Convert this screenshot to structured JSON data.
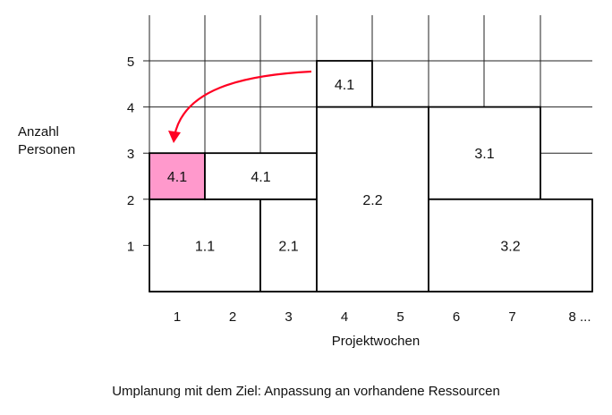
{
  "y_axis": {
    "label_line1": "Anzahl",
    "label_line2": "Personen",
    "ticks": [
      "1",
      "2",
      "3",
      "4",
      "5"
    ]
  },
  "x_axis": {
    "label": "Projektwochen",
    "ticks": [
      "1",
      "2",
      "3",
      "4",
      "5",
      "6",
      "7",
      "8 ..."
    ]
  },
  "blocks": [
    {
      "label": "1.1",
      "week_start": 1,
      "week_end": 2,
      "persons_from": 0,
      "persons_to": 2,
      "color": "#ffffff"
    },
    {
      "label": "2.1",
      "week_start": 3,
      "week_end": 3,
      "persons_from": 0,
      "persons_to": 2,
      "color": "#ffffff"
    },
    {
      "label": "4.1",
      "week_start": 1,
      "week_end": 1,
      "persons_from": 2,
      "persons_to": 3,
      "color": "#ff99cc"
    },
    {
      "label": "4.1",
      "week_start": 2,
      "week_end": 3,
      "persons_from": 2,
      "persons_to": 3,
      "color": "#ffffff"
    },
    {
      "label": "2.2",
      "week_start": 4,
      "week_end": 5,
      "persons_from": 0,
      "persons_to": 4,
      "color": "#ffffff"
    },
    {
      "label": "4.1",
      "week_start": 4,
      "week_end": 4,
      "persons_from": 4,
      "persons_to": 5,
      "color": "#ffffff"
    },
    {
      "label": "3.1",
      "week_start": 6,
      "week_end": 7,
      "persons_from": 2,
      "persons_to": 4,
      "color": "#ffffff"
    },
    {
      "label": "3.2",
      "week_start": 6,
      "week_end": 8,
      "persons_from": 0,
      "persons_to": 2,
      "color": "#ffffff"
    }
  ],
  "arrow": {
    "from_block": "4.1 (week 4)",
    "to_block": "4.1 (week 1)",
    "color": "#ff0022"
  },
  "caption": "Umplanung mit dem Ziel: Anpassung an vorhandene Ressourcen"
}
